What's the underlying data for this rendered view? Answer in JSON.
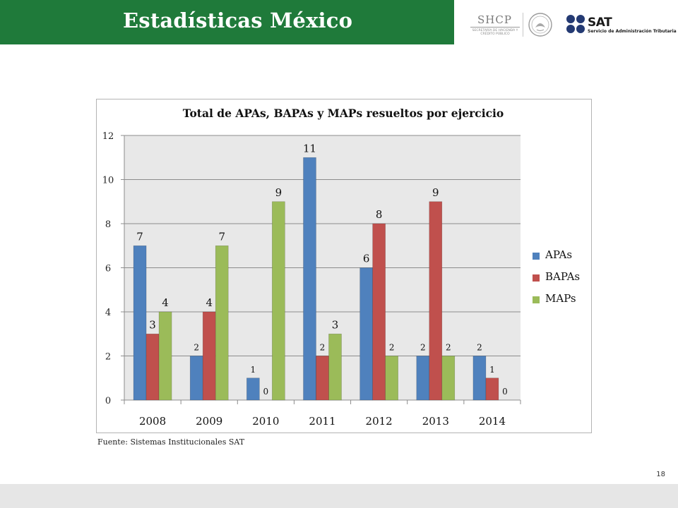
{
  "header": {
    "title": "Estadísticas México",
    "band_color": "#1f7a3a"
  },
  "logos": {
    "shcp_name": "SHCP",
    "shcp_subtitle": "SECRETARÍA DE HACIENDA Y CRÉDITO PÚBLICO",
    "sat_name": "SAT",
    "sat_subtitle": "Servicio de Administración Tributaria"
  },
  "chart_data": {
    "type": "bar",
    "title": "Total de APAs, BAPAs y MAPs resueltos por ejercicio",
    "categories": [
      "2008",
      "2009",
      "2010",
      "2011",
      "2012",
      "2013",
      "2014"
    ],
    "series": [
      {
        "name": "APAs",
        "values": [
          7,
          2,
          1,
          11,
          6,
          2,
          2
        ],
        "color": "#4f81bd"
      },
      {
        "name": "BAPAs",
        "values": [
          3,
          4,
          0,
          2,
          8,
          9,
          1
        ],
        "color": "#c0504d"
      },
      {
        "name": "MAPs",
        "values": [
          4,
          7,
          9,
          3,
          2,
          2,
          0
        ],
        "color": "#9bbb59"
      }
    ],
    "yticks": [
      0,
      2,
      4,
      6,
      8,
      10,
      12
    ],
    "ylim": [
      0,
      12
    ],
    "grid": true,
    "legend_position": "right",
    "plot_background": "#e8e8e8"
  },
  "footer": {
    "source": "Fuente: Sistemas Institucionales SAT",
    "page_number": "18"
  }
}
